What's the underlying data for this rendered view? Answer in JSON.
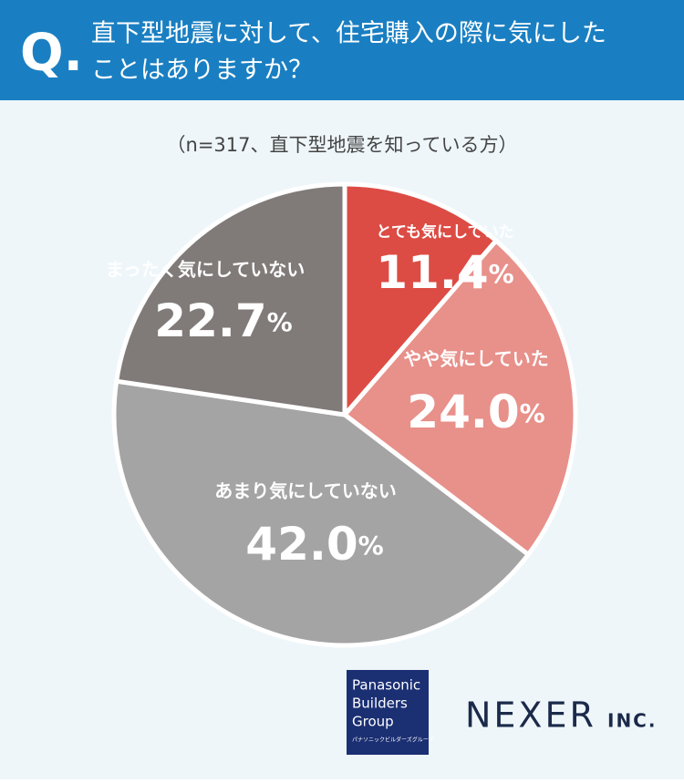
{
  "header": {
    "q_mark": "Q.",
    "question_lines": [
      "直下型地震に対して、住宅購入の際に気にした",
      "ことはありますか？"
    ]
  },
  "chart_data": {
    "type": "pie",
    "subtitle": "（n=317、直下型地震を知っている方）",
    "categories": [
      "とても気にしていた",
      "やや気にしていた",
      "あまり気にしていない",
      "まったく気にしていない"
    ],
    "values": [
      11.4,
      24.0,
      42.0,
      22.7
    ],
    "value_labels": [
      "11.4",
      "24.0",
      "42.0",
      "22.7"
    ],
    "value_unit": "%",
    "colors": [
      "#dc4c44",
      "#e8908a",
      "#a4a4a4",
      "#807b79"
    ]
  },
  "logos": {
    "panasonic": [
      "Panasonic",
      "Builders",
      "Group",
      "パナソニックビルダーズグループ"
    ],
    "nexer": "NEXER",
    "nexer_suffix": "INC."
  }
}
